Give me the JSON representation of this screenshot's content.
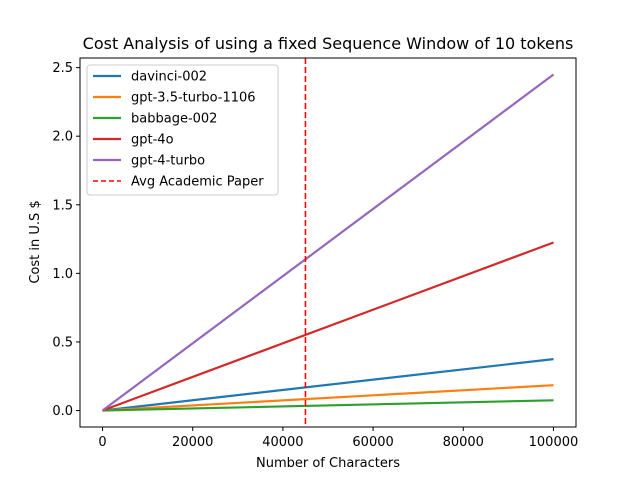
{
  "chart_data": {
    "type": "line",
    "title": "Cost Analysis of using a fixed Sequence Window of 10 tokens",
    "xlabel": "Number of Characters",
    "ylabel": "Cost in U.S $",
    "xlim": [
      -5000,
      105000
    ],
    "ylim": [
      -0.12,
      2.57
    ],
    "xticks": [
      0,
      20000,
      40000,
      60000,
      80000,
      100000
    ],
    "yticks": [
      0.0,
      0.5,
      1.0,
      1.5,
      2.0,
      2.5
    ],
    "xtick_labels": [
      "0",
      "20000",
      "40000",
      "60000",
      "80000",
      "100000"
    ],
    "ytick_labels": [
      "0.0",
      "0.5",
      "1.0",
      "1.5",
      "2.0",
      "2.5"
    ],
    "x": [
      0,
      100000
    ],
    "series": [
      {
        "name": "davinci-002",
        "color": "#1f77b4",
        "values": [
          0,
          0.375
        ]
      },
      {
        "name": "gpt-3.5-turbo-1106",
        "color": "#ff7f0e",
        "values": [
          0,
          0.185
        ]
      },
      {
        "name": "babbage-002",
        "color": "#2ca02c",
        "values": [
          0,
          0.075
        ]
      },
      {
        "name": "gpt-4o",
        "color": "#d62728",
        "values": [
          0,
          1.225
        ]
      },
      {
        "name": "gpt-4-turbo",
        "color": "#9467bd",
        "values": [
          0,
          2.45
        ]
      }
    ],
    "vline": {
      "name": "Avg Academic Paper",
      "x": 45000,
      "color": "#ff0000",
      "style": "dashed"
    },
    "grid": false,
    "legend_position": "top-left"
  }
}
